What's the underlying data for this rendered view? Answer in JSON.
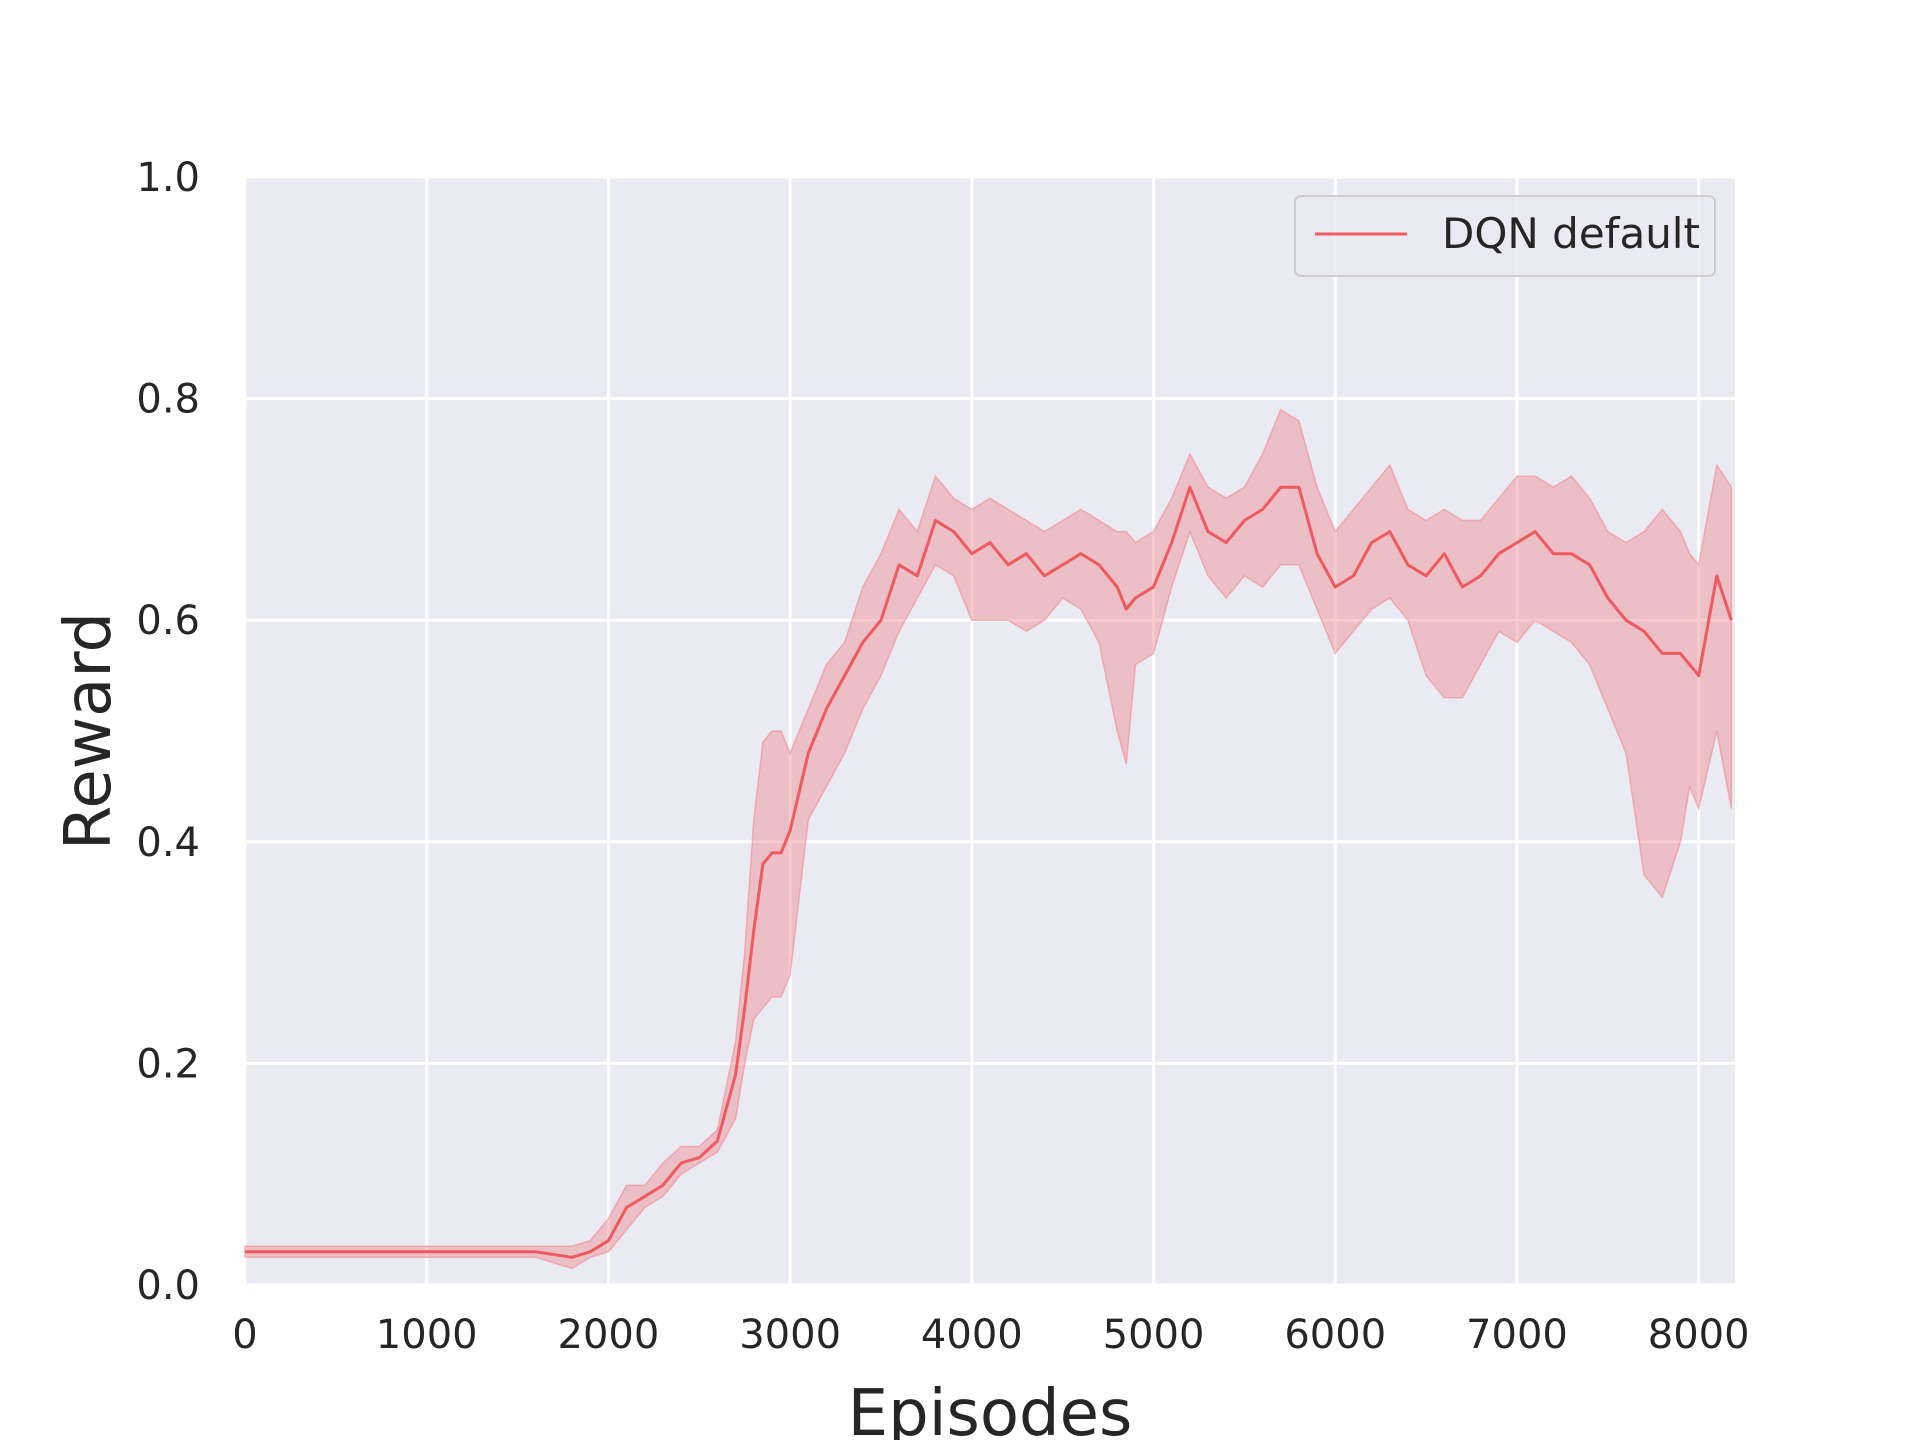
{
  "chart_data": {
    "type": "line",
    "title": "",
    "xlabel": "Episodes",
    "ylabel": "Reward",
    "xlim": [
      0,
      8200
    ],
    "ylim": [
      0,
      1.0
    ],
    "xticks": [
      0,
      1000,
      2000,
      3000,
      4000,
      5000,
      6000,
      7000,
      8000
    ],
    "xtick_labels": [
      "0",
      "1000",
      "2000",
      "3000",
      "4000",
      "5000",
      "6000",
      "7000",
      "8000"
    ],
    "yticks": [
      0.0,
      0.2,
      0.4,
      0.6,
      0.8,
      1.0
    ],
    "ytick_labels": [
      "0.0",
      "0.2",
      "0.4",
      "0.6",
      "0.8",
      "1.0"
    ],
    "grid": true,
    "legend_position": "top-right",
    "colors": {
      "background": "#eaeaf2",
      "grid": "#ffffff",
      "line": "#ee5a5e",
      "band": "#f08a90"
    },
    "series": [
      {
        "name": "DQN default",
        "x": [
          0,
          200,
          400,
          600,
          800,
          1000,
          1200,
          1400,
          1600,
          1800,
          1900,
          2000,
          2100,
          2200,
          2300,
          2400,
          2500,
          2600,
          2700,
          2750,
          2800,
          2850,
          2900,
          2950,
          3000,
          3100,
          3200,
          3300,
          3400,
          3500,
          3600,
          3700,
          3800,
          3900,
          4000,
          4100,
          4200,
          4300,
          4400,
          4500,
          4600,
          4700,
          4800,
          4850,
          4900,
          5000,
          5100,
          5200,
          5300,
          5400,
          5500,
          5600,
          5700,
          5800,
          5900,
          6000,
          6100,
          6200,
          6300,
          6400,
          6500,
          6600,
          6700,
          6800,
          6900,
          7000,
          7100,
          7200,
          7300,
          7400,
          7500,
          7600,
          7700,
          7800,
          7900,
          7950,
          8000,
          8100,
          8180
        ],
        "y": [
          0.03,
          0.03,
          0.03,
          0.03,
          0.03,
          0.03,
          0.03,
          0.03,
          0.03,
          0.025,
          0.03,
          0.04,
          0.07,
          0.08,
          0.09,
          0.11,
          0.115,
          0.13,
          0.19,
          0.25,
          0.32,
          0.38,
          0.39,
          0.39,
          0.41,
          0.48,
          0.52,
          0.55,
          0.58,
          0.6,
          0.65,
          0.64,
          0.69,
          0.68,
          0.66,
          0.67,
          0.65,
          0.66,
          0.64,
          0.65,
          0.66,
          0.65,
          0.63,
          0.61,
          0.62,
          0.63,
          0.67,
          0.72,
          0.68,
          0.67,
          0.69,
          0.7,
          0.72,
          0.72,
          0.66,
          0.63,
          0.64,
          0.67,
          0.68,
          0.65,
          0.64,
          0.66,
          0.63,
          0.64,
          0.66,
          0.67,
          0.68,
          0.66,
          0.66,
          0.65,
          0.62,
          0.6,
          0.59,
          0.57,
          0.57,
          0.56,
          0.55,
          0.64,
          0.6
        ],
        "lower": [
          0.025,
          0.025,
          0.025,
          0.025,
          0.025,
          0.025,
          0.025,
          0.025,
          0.025,
          0.015,
          0.025,
          0.03,
          0.05,
          0.07,
          0.08,
          0.1,
          0.11,
          0.12,
          0.15,
          0.2,
          0.24,
          0.25,
          0.26,
          0.26,
          0.28,
          0.42,
          0.45,
          0.48,
          0.52,
          0.55,
          0.59,
          0.62,
          0.65,
          0.64,
          0.6,
          0.6,
          0.6,
          0.59,
          0.6,
          0.62,
          0.61,
          0.58,
          0.5,
          0.47,
          0.56,
          0.57,
          0.63,
          0.68,
          0.64,
          0.62,
          0.64,
          0.63,
          0.65,
          0.65,
          0.61,
          0.57,
          0.59,
          0.61,
          0.62,
          0.6,
          0.55,
          0.53,
          0.53,
          0.56,
          0.59,
          0.58,
          0.6,
          0.59,
          0.58,
          0.56,
          0.52,
          0.48,
          0.37,
          0.35,
          0.4,
          0.45,
          0.43,
          0.5,
          0.43
        ],
        "upper": [
          0.035,
          0.035,
          0.035,
          0.035,
          0.035,
          0.035,
          0.035,
          0.035,
          0.035,
          0.035,
          0.04,
          0.06,
          0.09,
          0.09,
          0.11,
          0.125,
          0.125,
          0.14,
          0.22,
          0.3,
          0.42,
          0.49,
          0.5,
          0.5,
          0.48,
          0.52,
          0.56,
          0.58,
          0.63,
          0.66,
          0.7,
          0.68,
          0.73,
          0.71,
          0.7,
          0.71,
          0.7,
          0.69,
          0.68,
          0.69,
          0.7,
          0.69,
          0.68,
          0.68,
          0.67,
          0.68,
          0.71,
          0.75,
          0.72,
          0.71,
          0.72,
          0.75,
          0.79,
          0.78,
          0.72,
          0.68,
          0.7,
          0.72,
          0.74,
          0.7,
          0.69,
          0.7,
          0.69,
          0.69,
          0.71,
          0.73,
          0.73,
          0.72,
          0.73,
          0.71,
          0.68,
          0.67,
          0.68,
          0.7,
          0.68,
          0.66,
          0.65,
          0.74,
          0.72
        ]
      }
    ]
  }
}
